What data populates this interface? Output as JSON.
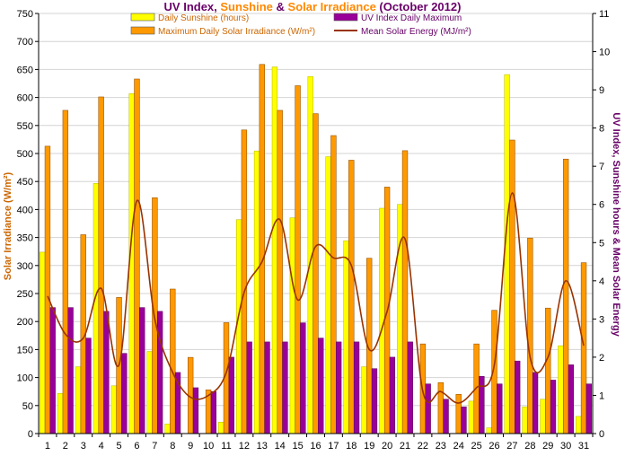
{
  "chart_data": {
    "type": "bar",
    "title_parts": [
      {
        "text": "UV Index",
        "color": "#6a006a"
      },
      {
        "text": ", ",
        "color": "#6a006a"
      },
      {
        "text": "Sunshine",
        "color": "#ff8800"
      },
      {
        "text": " & ",
        "color": "#6a006a"
      },
      {
        "text": "Solar Irradiance",
        "color": "#ff8800"
      },
      {
        "text": " (October 2012)",
        "color": "#6a006a"
      }
    ],
    "ylabel_left": "Solar Irradiance (W/m²)",
    "ylabel_right": "UV Index, Sunshine hours & Mean Solar Energy",
    "ylim_left": [
      0,
      750
    ],
    "yticks_left": [
      "0",
      "50",
      "100",
      "150",
      "200",
      "250",
      "300",
      "350",
      "400",
      "450",
      "500",
      "550",
      "600",
      "650",
      "700",
      "750"
    ],
    "ylim_right": [
      0,
      11
    ],
    "yticks_right": [
      "0",
      "1",
      "2",
      "3",
      "4",
      "5",
      "6",
      "7",
      "8",
      "9",
      "10",
      "11"
    ],
    "categories": [
      "1",
      "2",
      "3",
      "4",
      "5",
      "6",
      "7",
      "8",
      "9",
      "10",
      "11",
      "12",
      "13",
      "14",
      "15",
      "16",
      "17",
      "18",
      "19",
      "20",
      "21",
      "22",
      "23",
      "24",
      "25",
      "26",
      "27",
      "28",
      "29",
      "30",
      "31"
    ],
    "grid": true,
    "legend_position": "top",
    "series": [
      {
        "name": "Daily Sunshine (hours)",
        "kind": "bar",
        "axis": "right",
        "color": "#ffff00",
        "values": [
          4.75,
          1.05,
          1.75,
          6.55,
          1.25,
          8.9,
          2.15,
          0.25,
          0.0,
          0.0,
          0.3,
          5.6,
          7.4,
          9.6,
          5.65,
          9.35,
          7.25,
          5.05,
          1.75,
          5.9,
          6.0,
          0.0,
          0.0,
          0.0,
          0.85,
          0.15,
          9.4,
          0.7,
          0.9,
          2.3,
          0.45
        ]
      },
      {
        "name": "Maximum Daily Solar Irradiance (W/m²)",
        "kind": "bar",
        "axis": "left",
        "color": "#ff9900",
        "values": [
          513,
          577,
          355,
          601,
          243,
          633,
          421,
          258,
          136,
          78,
          198,
          542,
          659,
          577,
          621,
          571,
          532,
          488,
          313,
          440,
          505,
          160,
          91,
          70,
          160,
          220,
          524,
          349,
          224,
          490,
          305
        ]
      },
      {
        "name": "UV Index Daily Maximum",
        "kind": "bar",
        "axis": "right",
        "color": "#990099",
        "values": [
          3.3,
          3.3,
          2.5,
          3.2,
          2.1,
          3.3,
          3.2,
          1.6,
          1.2,
          1.1,
          2.0,
          2.4,
          2.4,
          2.4,
          2.9,
          2.5,
          2.4,
          2.4,
          1.7,
          2.0,
          2.4,
          1.3,
          0.9,
          0.7,
          1.5,
          1.3,
          1.9,
          1.6,
          1.4,
          1.8,
          1.3
        ]
      },
      {
        "name": "Mean Solar Energy (MJ/m²)",
        "kind": "line",
        "axis": "right",
        "color": "#993300",
        "values": [
          3.6,
          2.6,
          2.5,
          3.8,
          1.8,
          6.1,
          3.0,
          1.6,
          0.95,
          1.0,
          1.6,
          3.7,
          4.5,
          5.6,
          3.5,
          4.9,
          4.6,
          4.4,
          2.2,
          3.2,
          5.1,
          1.1,
          1.1,
          0.8,
          1.2,
          1.8,
          6.3,
          2.0,
          2.0,
          4.0,
          2.3
        ]
      }
    ]
  }
}
